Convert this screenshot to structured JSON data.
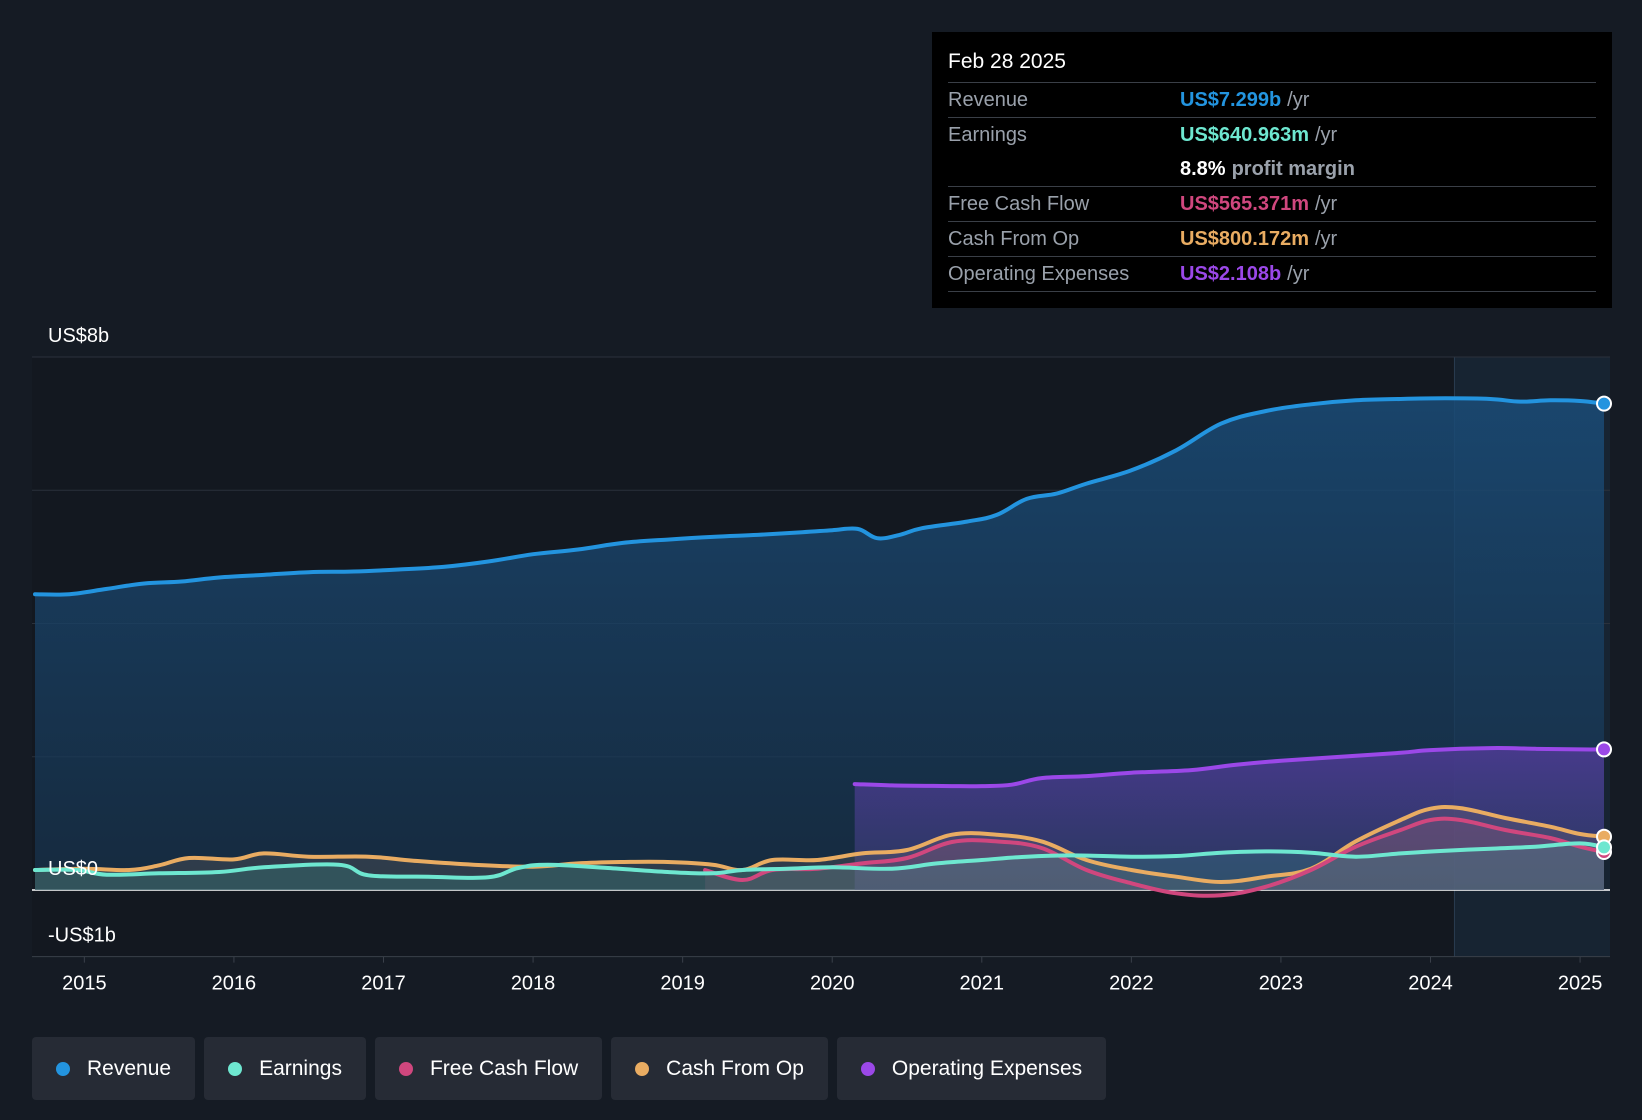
{
  "colors": {
    "revenue": "#2394df",
    "earnings": "#6ee7d0",
    "free_cash_flow": "#d0477e",
    "cash_from_op": "#e9ac62",
    "operating_expenses": "#9b48e8"
  },
  "tooltip": {
    "date": "Feb 28 2025",
    "rows": [
      {
        "label": "Revenue",
        "value": "US$7.299b",
        "unit": "/yr"
      },
      {
        "label": "Earnings",
        "value": "US$640.963m",
        "unit": "/yr"
      },
      {
        "label": "",
        "value": "8.8%",
        "unit": "profit margin"
      },
      {
        "label": "Free Cash Flow",
        "value": "US$565.371m",
        "unit": "/yr"
      },
      {
        "label": "Cash From Op",
        "value": "US$800.172m",
        "unit": "/yr"
      },
      {
        "label": "Operating Expenses",
        "value": "US$2.108b",
        "unit": "/yr"
      }
    ]
  },
  "legend": [
    {
      "label": "Revenue"
    },
    {
      "label": "Earnings"
    },
    {
      "label": "Free Cash Flow"
    },
    {
      "label": "Cash From Op"
    },
    {
      "label": "Operating Expenses"
    }
  ],
  "chart_data": {
    "type": "area",
    "y_labels": [
      "US$8b",
      "US$0",
      "-US$1b"
    ],
    "ylim": [
      -1,
      8
    ],
    "xlim": [
      2014.65,
      2025.2
    ],
    "x_ticks": [
      2015,
      2016,
      2017,
      2018,
      2019,
      2020,
      2021,
      2022,
      2023,
      2024,
      2025
    ],
    "x_tick_labels": [
      "2015",
      "2016",
      "2017",
      "2018",
      "2019",
      "2020",
      "2021",
      "2022",
      "2023",
      "2024",
      "2025"
    ],
    "grid": true,
    "highlight_start": 2024.16,
    "series": [
      {
        "name": "Revenue",
        "x": [
          2014.67,
          2014.9,
          2015.15,
          2015.4,
          2015.65,
          2015.9,
          2016.2,
          2016.5,
          2016.8,
          2017.1,
          2017.4,
          2017.7,
          2018.0,
          2018.3,
          2018.6,
          2018.9,
          2019.2,
          2019.5,
          2019.8,
          2020.0,
          2020.17,
          2020.3,
          2020.45,
          2020.6,
          2020.9,
          2021.1,
          2021.3,
          2021.5,
          2021.7,
          2022.0,
          2022.3,
          2022.6,
          2022.9,
          2023.2,
          2023.5,
          2023.8,
          2024.1,
          2024.4,
          2024.6,
          2024.8,
          2025.0,
          2025.16
        ],
        "y": [
          4.44,
          4.44,
          4.52,
          4.6,
          4.63,
          4.69,
          4.73,
          4.77,
          4.78,
          4.81,
          4.85,
          4.93,
          5.04,
          5.11,
          5.21,
          5.26,
          5.3,
          5.33,
          5.37,
          5.4,
          5.42,
          5.28,
          5.33,
          5.43,
          5.53,
          5.63,
          5.87,
          5.95,
          6.1,
          6.3,
          6.6,
          7.0,
          7.19,
          7.29,
          7.35,
          7.37,
          7.38,
          7.37,
          7.33,
          7.35,
          7.34,
          7.3
        ]
      },
      {
        "name": "Earnings",
        "x": [
          2014.67,
          2014.95,
          2015.15,
          2015.5,
          2015.9,
          2016.2,
          2016.7,
          2016.9,
          2017.3,
          2017.7,
          2017.9,
          2018.1,
          2018.5,
          2018.9,
          2019.2,
          2019.4,
          2019.7,
          2020.0,
          2020.4,
          2020.7,
          2021.0,
          2021.3,
          2021.6,
          2022.0,
          2022.3,
          2022.6,
          2022.9,
          2023.2,
          2023.5,
          2023.8,
          2024.1,
          2024.4,
          2024.7,
          2025.0,
          2025.16
        ],
        "y": [
          0.3,
          0.3,
          0.23,
          0.25,
          0.27,
          0.34,
          0.38,
          0.22,
          0.2,
          0.19,
          0.33,
          0.38,
          0.33,
          0.27,
          0.25,
          0.3,
          0.32,
          0.34,
          0.32,
          0.4,
          0.45,
          0.5,
          0.52,
          0.5,
          0.51,
          0.56,
          0.58,
          0.56,
          0.5,
          0.55,
          0.59,
          0.62,
          0.65,
          0.7,
          0.64
        ]
      },
      {
        "name": "Free Cash Flow",
        "x": [
          2019.15,
          2019.4,
          2019.6,
          2019.9,
          2020.2,
          2020.5,
          2020.8,
          2021.1,
          2021.4,
          2021.7,
          2022.0,
          2022.3,
          2022.6,
          2022.9,
          2023.2,
          2023.5,
          2023.8,
          2024.0,
          2024.2,
          2024.5,
          2024.8,
          2025.0,
          2025.16
        ],
        "y": [
          0.3,
          0.15,
          0.3,
          0.32,
          0.4,
          0.48,
          0.72,
          0.73,
          0.63,
          0.3,
          0.1,
          -0.05,
          -0.08,
          0.05,
          0.3,
          0.65,
          0.9,
          1.05,
          1.05,
          0.9,
          0.78,
          0.65,
          0.57
        ]
      },
      {
        "name": "Cash From Op",
        "x": [
          2014.67,
          2015.0,
          2015.3,
          2015.5,
          2015.7,
          2016.0,
          2016.2,
          2016.5,
          2016.9,
          2017.2,
          2017.6,
          2018.0,
          2018.3,
          2018.6,
          2018.9,
          2019.2,
          2019.4,
          2019.6,
          2019.9,
          2020.2,
          2020.5,
          2020.8,
          2021.1,
          2021.4,
          2021.7,
          2022.0,
          2022.3,
          2022.6,
          2022.9,
          2023.2,
          2023.5,
          2023.8,
          2024.0,
          2024.2,
          2024.5,
          2024.8,
          2025.0,
          2025.16
        ],
        "y": [
          0.3,
          0.32,
          0.3,
          0.37,
          0.48,
          0.46,
          0.55,
          0.5,
          0.5,
          0.44,
          0.38,
          0.35,
          0.4,
          0.42,
          0.42,
          0.38,
          0.3,
          0.45,
          0.45,
          0.55,
          0.6,
          0.83,
          0.83,
          0.73,
          0.45,
          0.3,
          0.2,
          0.12,
          0.2,
          0.32,
          0.73,
          1.05,
          1.22,
          1.23,
          1.08,
          0.95,
          0.84,
          0.8
        ]
      },
      {
        "name": "Operating Expenses",
        "x": [
          2020.15,
          2020.4,
          2020.8,
          2021.0,
          2021.2,
          2021.4,
          2021.7,
          2022.0,
          2022.4,
          2022.7,
          2023.0,
          2023.4,
          2023.8,
          2024.0,
          2024.4,
          2024.7,
          2025.0,
          2025.16
        ],
        "y": [
          1.59,
          1.57,
          1.56,
          1.56,
          1.58,
          1.68,
          1.71,
          1.76,
          1.8,
          1.88,
          1.94,
          2.0,
          2.06,
          2.1,
          2.13,
          2.12,
          2.11,
          2.11
        ]
      }
    ]
  }
}
